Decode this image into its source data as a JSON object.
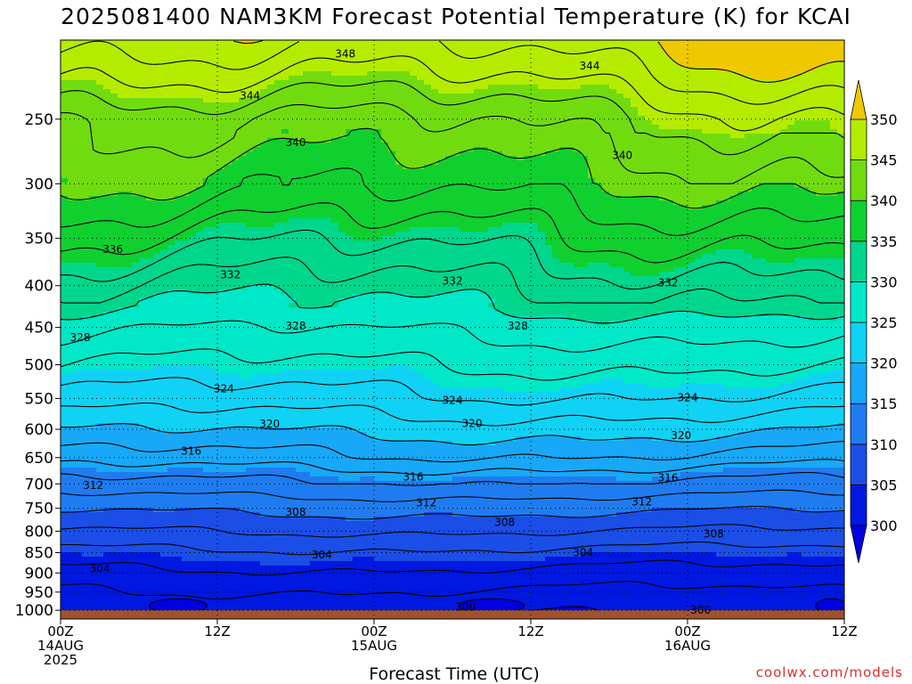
{
  "chart_data": {
    "type": "heatmap",
    "title": "2025081400 NAM3KM Forecast Potential Temperature (K) for KCAI",
    "xlabel": "Forecast Time (UTC)",
    "credit": "coolwx.com/models",
    "y_axis": {
      "scale": "log-pressure",
      "range": [
        200,
        1025
      ],
      "ticks": [
        250,
        300,
        350,
        400,
        450,
        500,
        550,
        600,
        650,
        700,
        750,
        800,
        850,
        900,
        950,
        1000
      ]
    },
    "x_axis": {
      "range_hours": [
        0,
        60
      ],
      "ticks": [
        {
          "hour": 0,
          "lines": [
            "00Z",
            "14AUG",
            "2025"
          ]
        },
        {
          "hour": 12,
          "lines": [
            "12Z"
          ]
        },
        {
          "hour": 24,
          "lines": [
            "00Z",
            "15AUG"
          ]
        },
        {
          "hour": 36,
          "lines": [
            "12Z"
          ]
        },
        {
          "hour": 48,
          "lines": [
            "00Z",
            "16AUG"
          ]
        },
        {
          "hour": 60,
          "lines": [
            "12Z"
          ]
        }
      ]
    },
    "grid": true,
    "colorbar": {
      "position": "right",
      "levels": [
        300,
        305,
        310,
        315,
        320,
        325,
        330,
        335,
        340,
        345,
        350
      ],
      "colors": [
        "#0018e0",
        "#1a4ee6",
        "#1f7cf0",
        "#18a8f8",
        "#10d2f4",
        "#00e8c8",
        "#00d68c",
        "#10d030",
        "#70dc10",
        "#b4ec00",
        "#f4f400"
      ],
      "under_color": "#0000e0",
      "over_color": "#f0c800"
    },
    "ground_color": "#a0522d",
    "contour_interval": 2,
    "profile": [
      {
        "pressure": 200,
        "theta": 349.5
      },
      {
        "pressure": 220,
        "theta": 347.0
      },
      {
        "pressure": 250,
        "theta": 343.0
      },
      {
        "pressure": 300,
        "theta": 339.5
      },
      {
        "pressure": 350,
        "theta": 335.5
      },
      {
        "pressure": 400,
        "theta": 332.0
      },
      {
        "pressure": 450,
        "theta": 328.5
      },
      {
        "pressure": 500,
        "theta": 326.0
      },
      {
        "pressure": 550,
        "theta": 323.5
      },
      {
        "pressure": 600,
        "theta": 320.5
      },
      {
        "pressure": 650,
        "theta": 317.5
      },
      {
        "pressure": 700,
        "theta": 313.5
      },
      {
        "pressure": 750,
        "theta": 310.5
      },
      {
        "pressure": 800,
        "theta": 308.0
      },
      {
        "pressure": 850,
        "theta": 305.5
      },
      {
        "pressure": 900,
        "theta": 303.5
      },
      {
        "pressure": 950,
        "theta": 301.8
      },
      {
        "pressure": 1000,
        "theta": 300.5
      },
      {
        "pressure": 1025,
        "theta": 300.0
      }
    ],
    "contour_labels": [
      {
        "value": "348",
        "hour": 21.8,
        "pressure": 208
      },
      {
        "value": "344",
        "hour": 40.5,
        "pressure": 215
      },
      {
        "value": "344",
        "hour": 14.5,
        "pressure": 234
      },
      {
        "value": "340",
        "hour": 18,
        "pressure": 267
      },
      {
        "value": "340",
        "hour": 43,
        "pressure": 277
      },
      {
        "value": "336",
        "hour": 4,
        "pressure": 361
      },
      {
        "value": "332",
        "hour": 13,
        "pressure": 388
      },
      {
        "value": "332",
        "hour": 30,
        "pressure": 395
      },
      {
        "value": "332",
        "hour": 46.5,
        "pressure": 397
      },
      {
        "value": "328",
        "hour": 18,
        "pressure": 448
      },
      {
        "value": "328",
        "hour": 35,
        "pressure": 448
      },
      {
        "value": "328",
        "hour": 1.5,
        "pressure": 463
      },
      {
        "value": "324",
        "hour": 12.5,
        "pressure": 535
      },
      {
        "value": "324",
        "hour": 30,
        "pressure": 553
      },
      {
        "value": "324",
        "hour": 48,
        "pressure": 549
      },
      {
        "value": "320",
        "hour": 16,
        "pressure": 591
      },
      {
        "value": "320",
        "hour": 31.5,
        "pressure": 590
      },
      {
        "value": "320",
        "hour": 47.5,
        "pressure": 611
      },
      {
        "value": "316",
        "hour": 10,
        "pressure": 638
      },
      {
        "value": "316",
        "hour": 27,
        "pressure": 686
      },
      {
        "value": "316",
        "hour": 46.5,
        "pressure": 688
      },
      {
        "value": "312",
        "hour": 2.5,
        "pressure": 703
      },
      {
        "value": "312",
        "hour": 28,
        "pressure": 738
      },
      {
        "value": "312",
        "hour": 44.5,
        "pressure": 736
      },
      {
        "value": "308",
        "hour": 18,
        "pressure": 758
      },
      {
        "value": "308",
        "hour": 34,
        "pressure": 780
      },
      {
        "value": "308",
        "hour": 50,
        "pressure": 806
      },
      {
        "value": "304",
        "hour": 20,
        "pressure": 855
      },
      {
        "value": "304",
        "hour": 40,
        "pressure": 850
      },
      {
        "value": "304",
        "hour": 3,
        "pressure": 889
      },
      {
        "value": "300",
        "hour": 31,
        "pressure": 991
      },
      {
        "value": "300",
        "hour": 49,
        "pressure": 1000
      }
    ]
  }
}
